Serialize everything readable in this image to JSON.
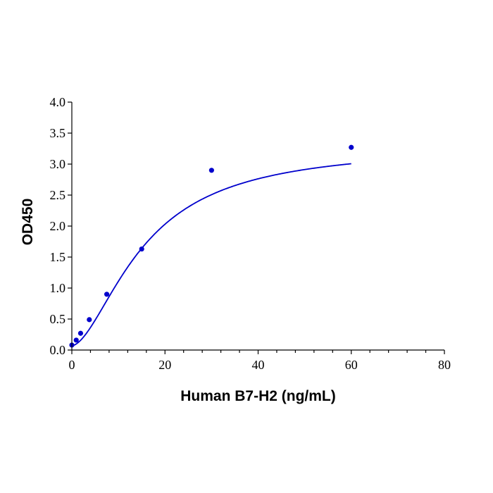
{
  "chart_data": {
    "type": "scatter",
    "title": "",
    "xlabel": "Human B7-H2 (ng/mL)",
    "ylabel": "OD450",
    "xlim": [
      0,
      80
    ],
    "ylim": [
      0,
      4.0
    ],
    "x_ticks": [
      0,
      20,
      40,
      60,
      80
    ],
    "x_tick_labels": [
      "0",
      "20",
      "40",
      "60",
      "80"
    ],
    "y_ticks": [
      0,
      0.5,
      1.0,
      1.5,
      2.0,
      2.5,
      3.0,
      3.5,
      4.0
    ],
    "y_tick_labels": [
      "0.0",
      "0.5",
      "1.0",
      "1.5",
      "2.0",
      "2.5",
      "3.0",
      "3.5",
      "4.0"
    ],
    "grid": false,
    "legend": "none",
    "colors": {
      "series": "#0000cc",
      "axis": "#000000"
    },
    "series": [
      {
        "x": [
          0,
          0.94,
          1.88,
          3.75,
          7.5,
          15,
          30,
          60
        ],
        "y": [
          0.08,
          0.16,
          0.27,
          0.49,
          0.9,
          1.63,
          2.9,
          3.27
        ]
      }
    ],
    "fit_curve": {
      "type": "4PL",
      "bottom": 0.07,
      "top": 3.3,
      "ec50": 15.5,
      "hill": 1.7
    }
  }
}
